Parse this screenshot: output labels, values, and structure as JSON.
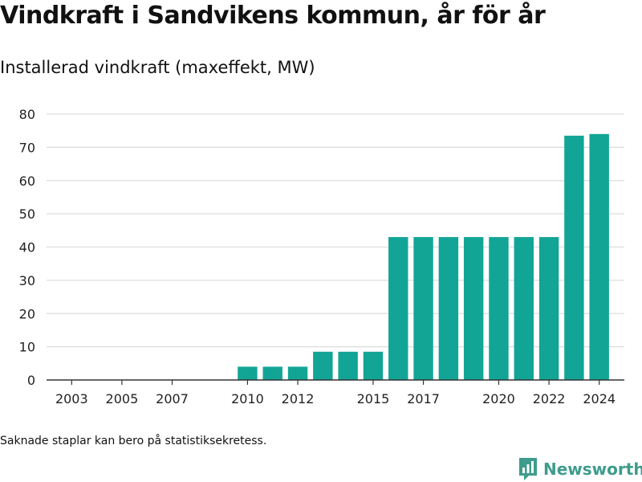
{
  "page": {
    "title": "Vindkraft i Sandvikens kommun, år för år",
    "subtitle": "Installerad vindkraft (maxeffekt, MW)",
    "footnote": "Saknade staplar kan bero på statistiksekretess.",
    "brand": "Newsworthy"
  },
  "colors": {
    "bar": "#12a596",
    "brand": "#3e9c8c",
    "grid": "#dddddd",
    "axis": "#333333",
    "text": "#111111"
  },
  "icons": {
    "brand_logo": "newsworthy-logo-icon"
  },
  "chart_data": {
    "type": "bar",
    "title": "Vindkraft i Sandvikens kommun, år för år",
    "subtitle": "Installerad vindkraft (maxeffekt, MW)",
    "xlabel": "",
    "ylabel": "",
    "ylim": [
      0,
      80
    ],
    "yticks": [
      0,
      10,
      20,
      30,
      40,
      50,
      60,
      70,
      80
    ],
    "xlim": [
      2002,
      2025
    ],
    "xticks": [
      2003,
      2005,
      2007,
      2010,
      2012,
      2015,
      2017,
      2020,
      2022,
      2024
    ],
    "grid": true,
    "legend": "none",
    "x": [
      2010,
      2011,
      2012,
      2013,
      2014,
      2015,
      2016,
      2017,
      2018,
      2019,
      2020,
      2021,
      2022,
      2023,
      2024
    ],
    "values": [
      4,
      4,
      4,
      8.5,
      8.5,
      8.5,
      43,
      43,
      43,
      43,
      43,
      43,
      43,
      73.5,
      74
    ]
  }
}
